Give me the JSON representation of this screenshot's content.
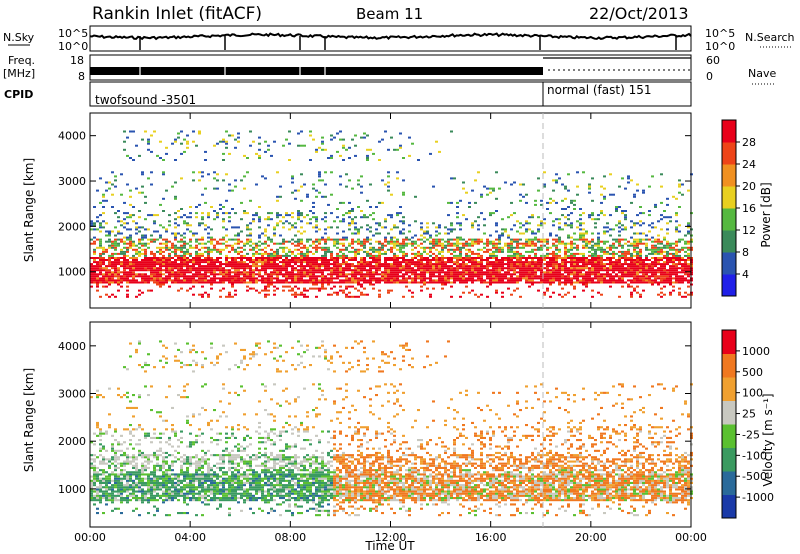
{
  "header": {
    "title": "Rankin Inlet (fitACF)",
    "beam": "Beam 11",
    "date": "22/Oct/2013"
  },
  "left_labels": {
    "nsky": "N.Sky",
    "freq": "Freq.",
    "mhz": "[MHz]",
    "cpid": "CPID"
  },
  "right_labels": {
    "nsearch": "N.Search",
    "nave": "Nave"
  },
  "top_panel": {
    "ticks_left": [
      "10^5",
      "10^0"
    ],
    "ticks_right": [
      "10^5",
      "10^0"
    ]
  },
  "freq_panel": {
    "ticks_left": [
      "18",
      "8"
    ],
    "ticks_right": [
      "60",
      "0"
    ]
  },
  "cpid_panel": {
    "modes": [
      "twofsound -3501",
      "normal (fast) 151"
    ]
  },
  "chart_data": [
    {
      "type": "heatmap",
      "xlabel": "",
      "ylabel": "Slant Range [km]",
      "ylim": [
        200,
        4500
      ],
      "yticks": [
        "1000",
        "2000",
        "3000",
        "4000"
      ],
      "colorbar_label": "Power [dB]",
      "colorbar_ticks": [
        "28",
        "24",
        "20",
        "16",
        "12",
        "8",
        "4"
      ],
      "colors": [
        "#2020e8",
        "#2a54b0",
        "#3a8a5a",
        "#55b840",
        "#e8d020",
        "#f09020",
        "#ee4418",
        "#e8001a"
      ]
    },
    {
      "type": "heatmap",
      "xlabel": "Time UT",
      "ylabel": "Slant Range [km]",
      "ylim": [
        200,
        4500
      ],
      "yticks": [
        "1000",
        "2000",
        "3000",
        "4000"
      ],
      "xticks": [
        "00:00",
        "04:00",
        "08:00",
        "12:00",
        "16:00",
        "20:00",
        "00:00"
      ],
      "colorbar_label": "Velocity [m s⁻¹]",
      "colorbar_ticks": [
        "1000",
        "500",
        "100",
        "25",
        "-25",
        "-100",
        "-500",
        "-1000"
      ],
      "colors": [
        "#1a3aa8",
        "#2a6a9a",
        "#3a9a60",
        "#5ac030",
        "#c8c8c0",
        "#f0a030",
        "#f07820",
        "#e8001a"
      ]
    }
  ]
}
